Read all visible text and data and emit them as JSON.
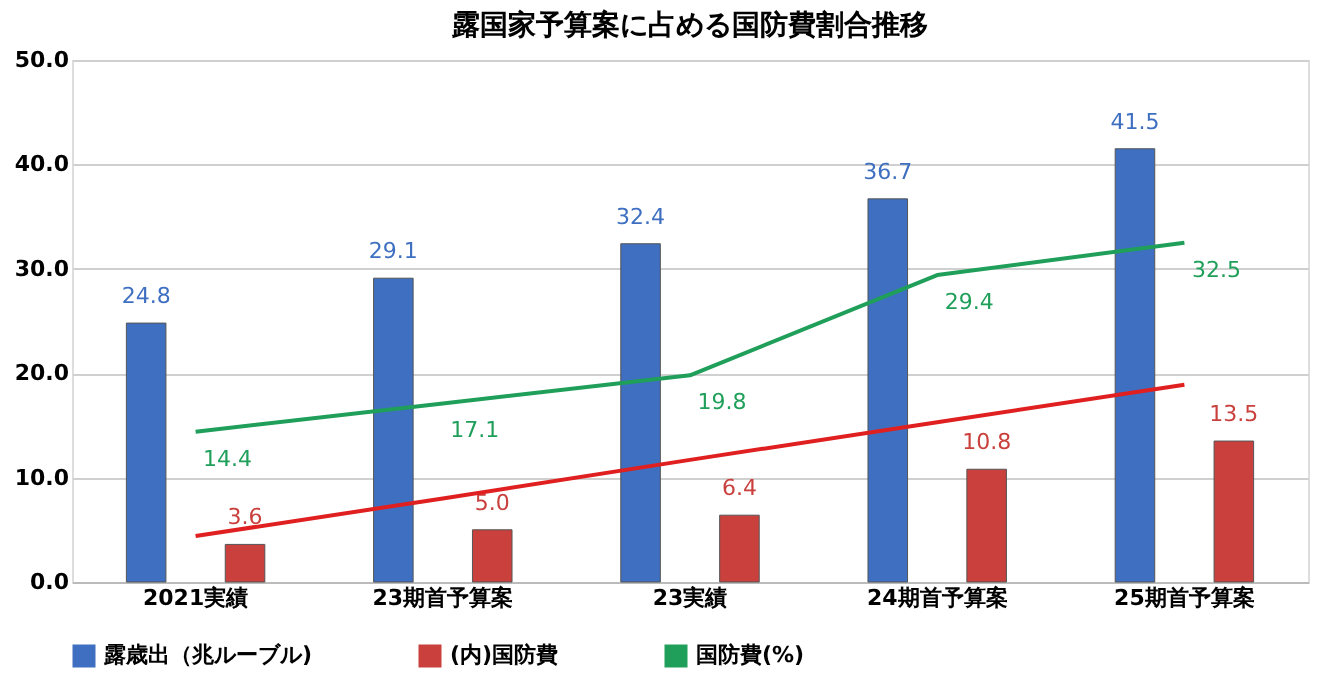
{
  "chart_data": {
    "type": "bar",
    "title": "露国家予算案に占める国防費割合推移",
    "categories": [
      "2021実績",
      "23期首予算案",
      "23実績",
      "24期首予算案",
      "25期首予算案"
    ],
    "series": [
      {
        "name": "露歳出（兆ルーブル)",
        "color": "#3e6fc1",
        "values": [
          24.8,
          29.1,
          32.4,
          36.7,
          41.5
        ],
        "value_labels": [
          "24.8",
          "29.1",
          "32.4",
          "36.7",
          "41.5"
        ]
      },
      {
        "name": "(内)国防費",
        "color": "#c9403c",
        "values": [
          3.6,
          5.0,
          6.4,
          10.8,
          13.5
        ],
        "value_labels": [
          "3.6",
          "5.0",
          "6.4",
          "10.8",
          "13.5"
        ]
      },
      {
        "name": "国防費(%)",
        "type": "line",
        "line_style": "solid",
        "color": "#1f9f5a",
        "values": [
          14.4,
          17.1,
          19.8,
          29.4,
          32.5
        ],
        "value_labels": [
          "14.4",
          "17.1",
          "19.8",
          "29.4",
          "32.5"
        ]
      },
      {
        "type": "line",
        "line_style": "solid",
        "color": "#e02020",
        "values": [
          4.4,
          8.0,
          11.7,
          15.3,
          18.9
        ]
      }
    ],
    "ylim": [
      0,
      50
    ],
    "yticks": [
      {
        "value": 0,
        "label": "0.0"
      },
      {
        "value": 10,
        "label": "10.0"
      },
      {
        "value": 20,
        "label": "20.0"
      },
      {
        "value": 30,
        "label": "30.0"
      },
      {
        "value": 40,
        "label": "40.0"
      },
      {
        "value": 50,
        "label": "50.0"
      }
    ],
    "grid": "y",
    "legend": "bottom"
  }
}
